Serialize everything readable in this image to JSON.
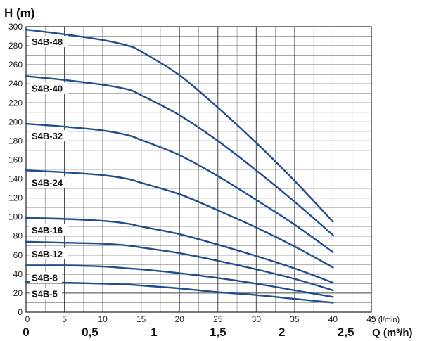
{
  "chart_data": {
    "type": "line",
    "ylabel": "H (m)",
    "xlabel": "Q (l/min)",
    "x2label": "Q (m³/h)",
    "xlim": [
      0,
      45
    ],
    "ylim": [
      0,
      300
    ],
    "x_ticks": [
      "0",
      "5",
      "10",
      "15",
      "20",
      "25",
      "30",
      "35",
      "40",
      "45"
    ],
    "y_ticks": [
      "0",
      "20",
      "40",
      "60",
      "80",
      "100",
      "120",
      "140",
      "160",
      "180",
      "200",
      "220",
      "240",
      "260",
      "280",
      "300"
    ],
    "x2_ticks": [
      {
        "value": 0,
        "label": "0"
      },
      {
        "value": 0.5,
        "label": "0,5"
      },
      {
        "value": 1,
        "label": "1"
      },
      {
        "value": 1.5,
        "label": "1,5"
      },
      {
        "value": 2,
        "label": "2"
      },
      {
        "value": 2.5,
        "label": "2,5"
      }
    ],
    "grid": true,
    "line_color": "#1f4e8f",
    "series": [
      {
        "name": "S4B-48",
        "x": [
          0,
          5,
          10,
          13.3,
          15,
          20,
          25,
          30,
          35,
          40
        ],
        "y": [
          297,
          292,
          286,
          280,
          274,
          249,
          215,
          178,
          138,
          95
        ]
      },
      {
        "name": "S4B-40",
        "x": [
          0,
          5,
          10,
          13.3,
          15,
          20,
          25,
          30,
          35,
          40
        ],
        "y": [
          248,
          244,
          239,
          234,
          228,
          207,
          180,
          149,
          116,
          81
        ]
      },
      {
        "name": "S4B-32",
        "x": [
          0,
          5,
          10,
          13.3,
          15,
          20,
          25,
          30,
          35,
          40
        ],
        "y": [
          198,
          195,
          191,
          186,
          181,
          165,
          143,
          118,
          92,
          63
        ]
      },
      {
        "name": "S4B-24",
        "x": [
          0,
          5,
          10,
          13.3,
          15,
          20,
          25,
          30,
          35,
          40
        ],
        "y": [
          149,
          147,
          144,
          140,
          136,
          124,
          107,
          89,
          69,
          47
        ]
      },
      {
        "name": "S4B-16",
        "x": [
          0,
          5,
          10,
          13.3,
          15,
          20,
          25,
          30,
          35,
          40
        ],
        "y": [
          99,
          98,
          96,
          93,
          90,
          82,
          71,
          59,
          46,
          31
        ]
      },
      {
        "name": "S4B-12",
        "x": [
          0,
          5,
          10,
          13.3,
          15,
          20,
          25,
          30,
          35,
          40
        ],
        "y": [
          74,
          73,
          72,
          70,
          68,
          62,
          54,
          45,
          35,
          23
        ]
      },
      {
        "name": "S4B-8",
        "x": [
          0,
          5,
          10,
          13.3,
          15,
          20,
          25,
          30,
          35,
          40
        ],
        "y": [
          49,
          49,
          48,
          46,
          45,
          41,
          36,
          30,
          23,
          16
        ]
      },
      {
        "name": "S4B-5",
        "x": [
          0,
          5,
          10,
          13.3,
          15,
          20,
          25,
          30,
          35,
          40
        ],
        "y": [
          32,
          31,
          30,
          29,
          28,
          25,
          21,
          18,
          14,
          10
        ]
      }
    ]
  }
}
